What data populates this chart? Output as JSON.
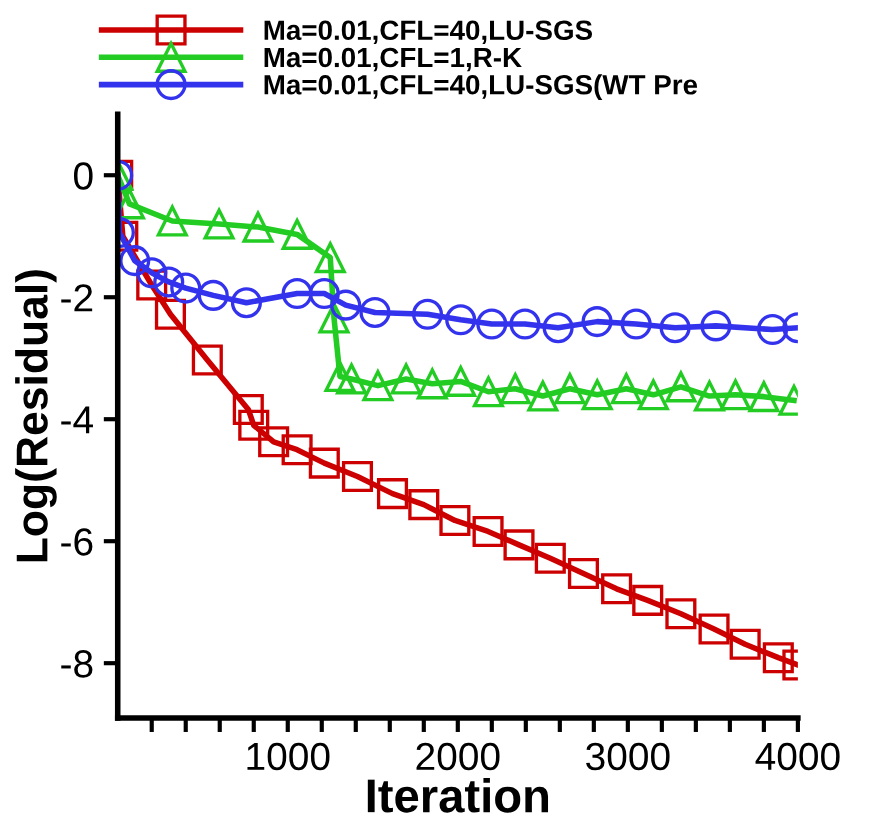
{
  "chart_data": {
    "type": "line",
    "xlabel": "Iteration",
    "ylabel": "Log(Residual)",
    "xlim": [
      0,
      4000
    ],
    "ylim": [
      -8.9,
      1
    ],
    "xticks": [
      {
        "value": 200,
        "label": null
      },
      {
        "value": 400,
        "label": null
      },
      {
        "value": 600,
        "label": null
      },
      {
        "value": 800,
        "label": null
      },
      1000,
      {
        "value": 1200,
        "label": null
      },
      {
        "value": 1400,
        "label": null
      },
      {
        "value": 1600,
        "label": null
      },
      {
        "value": 1800,
        "label": null
      },
      2000,
      {
        "value": 2200,
        "label": null
      },
      {
        "value": 2400,
        "label": null
      },
      {
        "value": 2600,
        "label": null
      },
      {
        "value": 2800,
        "label": null
      },
      3000,
      {
        "value": 3200,
        "label": null
      },
      {
        "value": 3400,
        "label": null
      },
      {
        "value": 3600,
        "label": null
      },
      {
        "value": 3800,
        "label": null
      },
      4000
    ],
    "yticks": [
      0,
      -2,
      -4,
      -6,
      -8
    ],
    "legend": "top left",
    "grid": false,
    "line_style": "solid",
    "series": [
      {
        "name": "Ma=0.01,CFL=40,LU-SGS",
        "color": "#cc0000",
        "marker": "square",
        "x": [
          0,
          30,
          200,
          310,
          527,
          768,
          800,
          917,
          1055,
          1215,
          1410,
          1616,
          1800,
          1983,
          2178,
          2360,
          2544,
          2739,
          2934,
          3117,
          3312,
          3507,
          3690,
          3885,
          4000
        ],
        "values": [
          0,
          -1.0,
          -1.8,
          -2.28,
          -3.03,
          -3.84,
          -4.1,
          -4.37,
          -4.5,
          -4.72,
          -4.94,
          -5.22,
          -5.4,
          -5.66,
          -5.84,
          -6.06,
          -6.28,
          -6.53,
          -6.78,
          -6.97,
          -7.19,
          -7.44,
          -7.69,
          -7.91,
          -8.03
        ]
      },
      {
        "name": "Ma=0.01,CFL=1,R-K",
        "color": "#22cc22",
        "marker": "triangle",
        "x": [
          0,
          69,
          321,
          596,
          825,
          1055,
          1250,
          1272,
          1307,
          1375,
          1530,
          1696,
          1850,
          2017,
          2180,
          2338,
          2500,
          2659,
          2820,
          2991,
          3150,
          3312,
          3480,
          3633,
          3800,
          3977
        ],
        "values": [
          0,
          -0.47,
          -0.75,
          -0.8,
          -0.85,
          -0.97,
          -1.35,
          -2.34,
          -3.3,
          -3.34,
          -3.45,
          -3.34,
          -3.42,
          -3.38,
          -3.55,
          -3.5,
          -3.62,
          -3.5,
          -3.6,
          -3.5,
          -3.6,
          -3.47,
          -3.62,
          -3.6,
          -3.63,
          -3.69
        ]
      },
      {
        "name": "Ma=0.01,CFL=40,LU-SGS(WT Pre",
        "color": "#3333ee",
        "marker": "circle",
        "x": [
          0,
          10,
          100,
          200,
          300,
          400,
          562,
          757,
          1055,
          1215,
          1341,
          1513,
          1822,
          2017,
          2200,
          2395,
          2590,
          2819,
          3049,
          3278,
          3518,
          3851,
          4000
        ],
        "values": [
          0,
          -0.94,
          -1.4,
          -1.6,
          -1.75,
          -1.85,
          -1.97,
          -2.09,
          -1.94,
          -1.94,
          -2.13,
          -2.25,
          -2.28,
          -2.37,
          -2.44,
          -2.44,
          -2.5,
          -2.4,
          -2.44,
          -2.5,
          -2.47,
          -2.53,
          -2.5
        ]
      }
    ]
  }
}
